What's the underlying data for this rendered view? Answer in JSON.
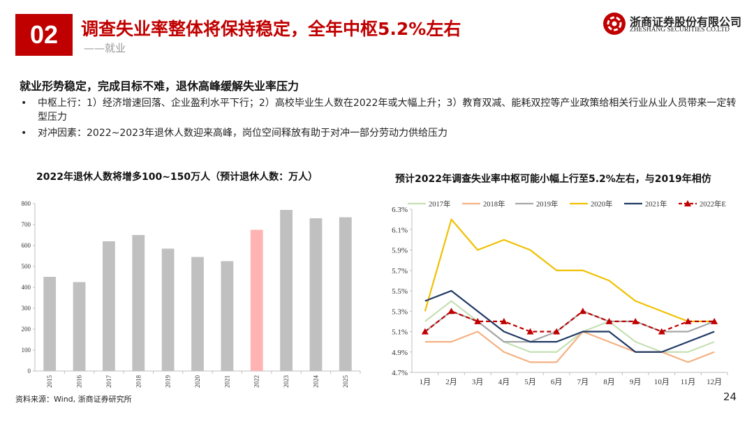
{
  "header": {
    "section_number": "02",
    "title": "调查失业率整体将保持稳定，全年中枢5.2%左右",
    "subtitle": "——就业",
    "logo_cn": "浙商证券股份有限公司",
    "logo_en": "ZHESHANG SECURITIES CO.LTD"
  },
  "body": {
    "heading": "就业形势稳定，完成目标不难，退休高峰缓解失业率压力",
    "bullets": [
      "中枢上行：1）经济增速回落、企业盈利水平下行；2）高校毕业生人数在2022年或大幅上升；3）教育双减、能耗双控等产业政策给相关行业从业人员带来一定转型压力",
      "对冲因素：2022~2023年退休人数迎来高峰，岗位空间释放有助于对冲一部分劳动力供给压力"
    ]
  },
  "footer": {
    "source": "资料来源：Wind, 浙商证券研究所",
    "page": "24"
  },
  "chart_data": [
    {
      "type": "bar",
      "title": "2022年退休人数将增多100~150万人（预计退休人数：万人）",
      "categories": [
        "2015",
        "2016",
        "2017",
        "2018",
        "2019",
        "2020",
        "2021",
        "2022",
        "2023",
        "2024",
        "2025"
      ],
      "values": [
        450,
        425,
        620,
        650,
        585,
        545,
        525,
        675,
        770,
        730,
        735
      ],
      "highlight_index": 7,
      "bar_color": "#c0c0c0",
      "highlight_color": "#ffb3b3",
      "ylim": [
        0,
        800
      ],
      "yticks": [
        "0",
        "100",
        "200",
        "300",
        "400",
        "500",
        "600",
        "700",
        "800"
      ],
      "ytick_values": [
        0,
        100,
        200,
        300,
        400,
        500,
        600,
        700,
        800
      ]
    },
    {
      "type": "line",
      "title": "预计2022年调查失业率中枢可能小幅上行至5.2%左右，与2019年相仿",
      "categories": [
        "1月",
        "2月",
        "3月",
        "4月",
        "5月",
        "6月",
        "7月",
        "8月",
        "9月",
        "10月",
        "11月",
        "12月"
      ],
      "ylim": [
        4.7,
        6.3
      ],
      "yticks": [
        "4.7%",
        "4.9%",
        "5.1%",
        "5.3%",
        "5.5%",
        "5.7%",
        "5.9%",
        "6.1%",
        "6.3%"
      ],
      "ytick_values": [
        4.7,
        4.9,
        5.1,
        5.3,
        5.5,
        5.7,
        5.9,
        6.1,
        6.3
      ],
      "legend_position": "top",
      "series": [
        {
          "name": "2017年",
          "color": "#c6e0b4",
          "dashed": false,
          "marker": false,
          "values": [
            5.2,
            5.4,
            5.2,
            5.0,
            4.9,
            4.9,
            5.1,
            5.2,
            5.0,
            4.9,
            4.9,
            5.0
          ]
        },
        {
          "name": "2018年",
          "color": "#f4b183",
          "dashed": false,
          "marker": false,
          "values": [
            5.0,
            5.0,
            5.1,
            4.9,
            4.8,
            4.8,
            5.1,
            5.0,
            4.9,
            4.9,
            4.8,
            4.9
          ]
        },
        {
          "name": "2019年",
          "color": "#a6a6a6",
          "dashed": false,
          "marker": false,
          "values": [
            5.1,
            5.3,
            5.2,
            5.0,
            5.0,
            5.1,
            5.3,
            5.2,
            5.2,
            5.1,
            5.1,
            5.2
          ]
        },
        {
          "name": "2020年",
          "color": "#f0c000",
          "dashed": false,
          "marker": false,
          "values": [
            5.3,
            6.2,
            5.9,
            6.0,
            5.9,
            5.7,
            5.7,
            5.6,
            5.4,
            5.3,
            5.2,
            5.2
          ]
        },
        {
          "name": "2021年",
          "color": "#1f3864",
          "dashed": false,
          "marker": false,
          "values": [
            5.4,
            5.5,
            5.3,
            5.1,
            5.0,
            5.0,
            5.1,
            5.1,
            4.9,
            4.9,
            5.0,
            5.1
          ]
        },
        {
          "name": "2022年E",
          "color": "#c00000",
          "dashed": true,
          "marker": true,
          "values": [
            5.1,
            5.3,
            5.2,
            5.2,
            5.1,
            5.1,
            5.3,
            5.2,
            5.2,
            5.1,
            5.2,
            5.2
          ]
        }
      ]
    }
  ]
}
